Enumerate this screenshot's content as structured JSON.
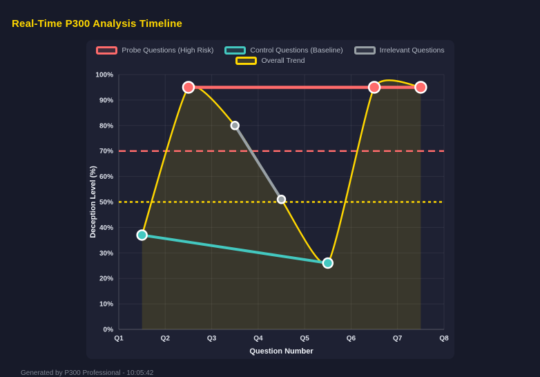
{
  "title": "Real-Time P300 Analysis Timeline",
  "footer": "Generated by P300 Professional - 10:05:42",
  "colors": {
    "background": "#171a29",
    "panel": "#1e2133",
    "title": "#ffd700",
    "grid": "rgba(255,255,255,0.07)",
    "axis_line": "rgba(255,255,255,0.25)",
    "tick_label": "#dde1ea",
    "legend_text": "#b3b9c5",
    "point_border": "#ffffff"
  },
  "chart_data": {
    "type": "line",
    "title": "Real-Time P300 Analysis Timeline",
    "xlabel": "Question Number",
    "ylabel": "Deception Level (%)",
    "x_range": [
      1,
      8
    ],
    "y_range": [
      0,
      100
    ],
    "x_tick_values": [
      1,
      2,
      3,
      4,
      5,
      6,
      7,
      8
    ],
    "x_ticks": [
      "Q1",
      "Q2",
      "Q3",
      "Q4",
      "Q5",
      "Q6",
      "Q7",
      "Q8"
    ],
    "y_tick_values": [
      0,
      10,
      20,
      30,
      40,
      50,
      60,
      70,
      80,
      90,
      100
    ],
    "y_ticks": [
      "0%",
      "10%",
      "20%",
      "30%",
      "40%",
      "50%",
      "60%",
      "70%",
      "80%",
      "90%",
      "100%"
    ],
    "grid": true,
    "legend_position": "top",
    "legend_rows": [
      [
        0,
        1,
        2
      ],
      [
        3
      ]
    ],
    "series": [
      {
        "name": "Probe Questions (High Risk)",
        "color": "#ff6b6b",
        "x": [
          2.5,
          6.5,
          7.5
        ],
        "y": [
          95,
          95,
          95
        ],
        "line_width": 4.5,
        "point_radius": 8,
        "smooth": false,
        "fill": false
      },
      {
        "name": "Control Questions (Baseline)",
        "color": "#43c8c0",
        "x": [
          1.5,
          5.5
        ],
        "y": [
          37,
          26
        ],
        "line_width": 4,
        "point_radius": 7,
        "smooth": false,
        "fill": false
      },
      {
        "name": "Irrelevant Questions",
        "color": "#98a0a5",
        "x": [
          3.5,
          4.5
        ],
        "y": [
          80,
          51
        ],
        "line_width": 4,
        "point_radius": 5.5,
        "smooth": false,
        "fill": false
      },
      {
        "name": "Overall Trend",
        "color": "#ffd700",
        "x": [
          1.5,
          2.5,
          3.5,
          4.5,
          5.5,
          6.5,
          7.5
        ],
        "y": [
          37,
          95,
          80,
          51,
          26,
          95,
          95
        ],
        "line_width": 2.5,
        "point_radius": 0,
        "smooth": true,
        "fill": true,
        "fill_color": "rgba(255,215,0,0.12)"
      }
    ],
    "thresholds": [
      {
        "value": 70,
        "color": "#ff6b6b",
        "dash": "10 6",
        "width": 2.5
      },
      {
        "value": 50,
        "color": "#ffd700",
        "dash": "4 4",
        "width": 2.5
      }
    ]
  }
}
